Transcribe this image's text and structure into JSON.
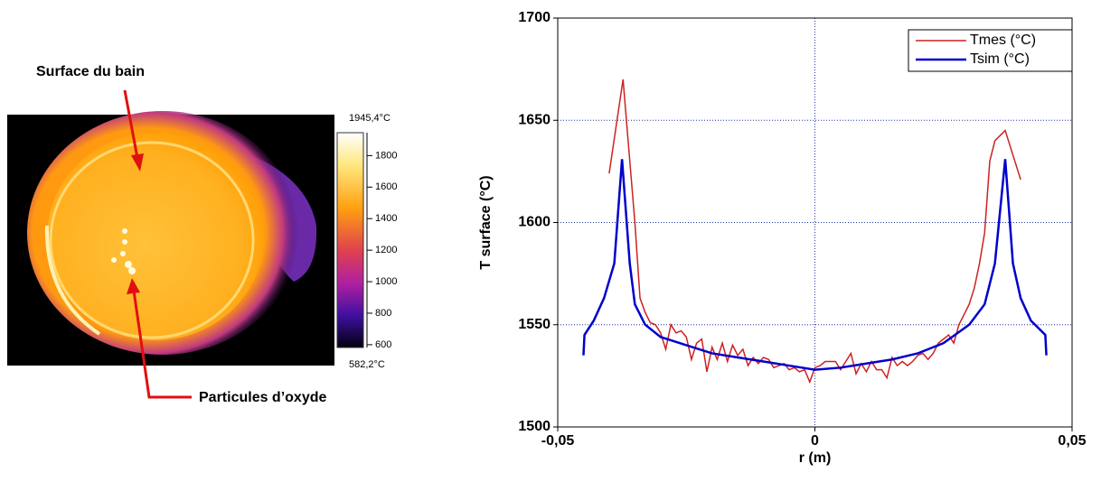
{
  "image": {
    "annotations": [
      "Surface du bain",
      "Particules d’oxyde"
    ],
    "colorbar": {
      "max_label": "1945,4°C",
      "min_label": "582,2°C",
      "lim": [
        582.2,
        1945.4
      ],
      "ticks": [
        1800,
        1600,
        1400,
        1200,
        1000,
        800,
        600
      ]
    }
  },
  "chart_data": {
    "type": "line",
    "xlabel": "r (m)",
    "ylabel": "T surface (°C)",
    "xlim": [
      -0.05,
      0.05
    ],
    "xticks": [
      {
        "value": -0.05,
        "label": "-0,05"
      },
      0,
      {
        "value": 0.05,
        "label": "0,05"
      }
    ],
    "ylim": [
      1500,
      1700
    ],
    "yticks": [
      1500,
      1550,
      1600,
      1650,
      1700
    ],
    "grid": true,
    "legend": "upper right",
    "series": [
      {
        "name": "Tmes (°C)",
        "color": "#cc2222",
        "width": 1.5,
        "x": [
          -0.04,
          -0.0373,
          -0.035,
          -0.034,
          -0.033,
          -0.032,
          -0.031,
          -0.03,
          -0.029,
          -0.028,
          -0.027,
          -0.026,
          -0.025,
          -0.024,
          -0.023,
          -0.022,
          -0.021,
          -0.02,
          -0.019,
          -0.018,
          -0.017,
          -0.016,
          -0.015,
          -0.014,
          -0.013,
          -0.012,
          -0.011,
          -0.01,
          -0.009,
          -0.008,
          -0.007,
          -0.006,
          -0.005,
          -0.004,
          -0.003,
          -0.002,
          -0.001,
          0,
          0.001,
          0.002,
          0.003,
          0.004,
          0.005,
          0.006,
          0.007,
          0.008,
          0.009,
          0.01,
          0.011,
          0.012,
          0.013,
          0.014,
          0.015,
          0.016,
          0.017,
          0.018,
          0.019,
          0.02,
          0.021,
          0.022,
          0.023,
          0.024,
          0.025,
          0.026,
          0.027,
          0.028,
          0.029,
          0.03,
          0.031,
          0.032,
          0.033,
          0.034,
          0.035,
          0.037,
          0.038,
          0.04
        ],
        "values": [
          1624,
          1670,
          1600,
          1563,
          1556,
          1551,
          1550,
          1546,
          1538,
          1550,
          1546,
          1547,
          1544,
          1533,
          1541,
          1543,
          1527,
          1539,
          1533,
          1541,
          1532,
          1540,
          1535,
          1538,
          1530,
          1534,
          1531,
          1534,
          1533,
          1529,
          1530,
          1531,
          1528,
          1529,
          1527,
          1528,
          1522,
          1529,
          1530,
          1532,
          1532,
          1532,
          1528,
          1532,
          1536,
          1526,
          1531,
          1527,
          1532,
          1528,
          1528,
          1524,
          1534,
          1530,
          1532,
          1530,
          1532,
          1535,
          1536,
          1533,
          1536,
          1541,
          1543,
          1545,
          1541,
          1550,
          1555,
          1560,
          1568,
          1580,
          1595,
          1630,
          1640,
          1645,
          1637,
          1621
        ]
      },
      {
        "name": "Tsim (°C)",
        "color": "#0000cc",
        "width": 2.5,
        "x": [
          -0.045,
          -0.0448,
          -0.043,
          -0.041,
          -0.039,
          -0.0375,
          -0.036,
          -0.035,
          -0.033,
          -0.03,
          -0.025,
          -0.02,
          -0.015,
          -0.01,
          -0.005,
          0,
          0.005,
          0.01,
          0.015,
          0.02,
          0.025,
          0.03,
          0.033,
          0.035,
          0.037,
          0.0385,
          0.04,
          0.042,
          0.0448,
          0.045
        ],
        "values": [
          1535,
          1545,
          1552,
          1563,
          1580,
          1631,
          1580,
          1560,
          1550,
          1544,
          1540,
          1536,
          1534,
          1532,
          1530,
          1528,
          1529,
          1531,
          1533,
          1536,
          1541,
          1550,
          1560,
          1580,
          1631,
          1580,
          1563,
          1552,
          1545,
          1535
        ]
      }
    ]
  }
}
